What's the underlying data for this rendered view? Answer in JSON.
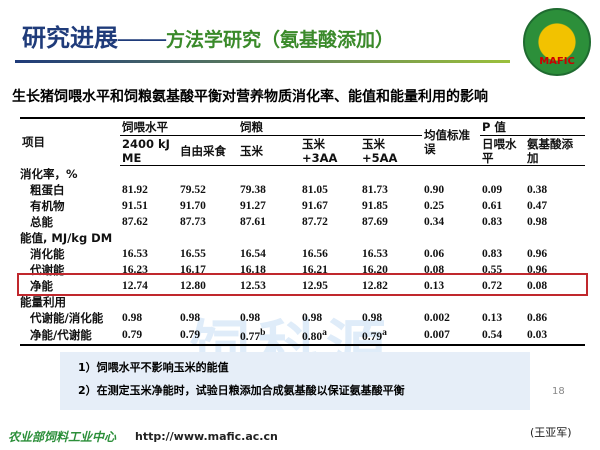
{
  "header": {
    "title_main": "研究进展——",
    "title_sub": "方法学研究（氨基酸添加）",
    "logo": "MAFIC"
  },
  "table": {
    "title": "生长猪饲喂水平和饲粮氨基酸平衡对营养物质消化率、能值和能量利用的影响",
    "header_top": [
      "项目",
      "饲喂水平",
      "饲粮",
      "均值标准误",
      "P 值"
    ],
    "header_sub": [
      "2400 kJ ME",
      "自由采食",
      "玉米",
      "玉米 +3AA",
      "玉米 +5AA",
      "日喂水平",
      "氨基酸添加"
    ],
    "rows": [
      [
        "消化率，%"
      ],
      [
        "粗蛋白",
        "81.92",
        "79.52",
        "79.38",
        "81.05",
        "81.73",
        "0.90",
        "0.09",
        "0.38"
      ],
      [
        "有机物",
        "91.51",
        "91.70",
        "91.27",
        "91.67",
        "91.85",
        "0.25",
        "0.61",
        "0.47"
      ],
      [
        "总能",
        "87.62",
        "87.73",
        "87.61",
        "87.72",
        "87.69",
        "0.34",
        "0.83",
        "0.98"
      ],
      [
        "能值, MJ/kg DM"
      ],
      [
        "消化能",
        "16.53",
        "16.55",
        "16.54",
        "16.56",
        "16.53",
        "0.06",
        "0.83",
        "0.96"
      ],
      [
        "代谢能",
        "16.23",
        "16.17",
        "16.18",
        "16.21",
        "16.20",
        "0.08",
        "0.55",
        "0.96"
      ],
      [
        "净能",
        "12.74",
        "12.80",
        "12.53",
        "12.95",
        "12.82",
        "0.13",
        "0.72",
        "0.08"
      ],
      [
        "能量利用"
      ],
      [
        "代谢能/消化能",
        "0.98",
        "0.98",
        "0.98",
        "0.98",
        "0.98",
        "0.002",
        "0.13",
        "0.86"
      ],
      [
        "净能/代谢能",
        "0.79",
        "0.79",
        {
          "value": "0.77",
          "note": "b"
        },
        {
          "value": "0.80",
          "note": "a"
        },
        {
          "value": "0.79",
          "note": "a"
        },
        "0.007",
        "0.54",
        "0.03"
      ]
    ]
  },
  "notes": [
    "1）饲喂水平不影响玉米的能值",
    "2）在测定玉米净能时，试验日粮添加合成氨基酸以保证氨基酸平衡"
  ],
  "page_number": "18",
  "watermark": "饲科源",
  "footer": {
    "org": "农业部饲料工业中心",
    "url": "http://www.mafic.ac.cn",
    "author": "(王亚军)"
  }
}
